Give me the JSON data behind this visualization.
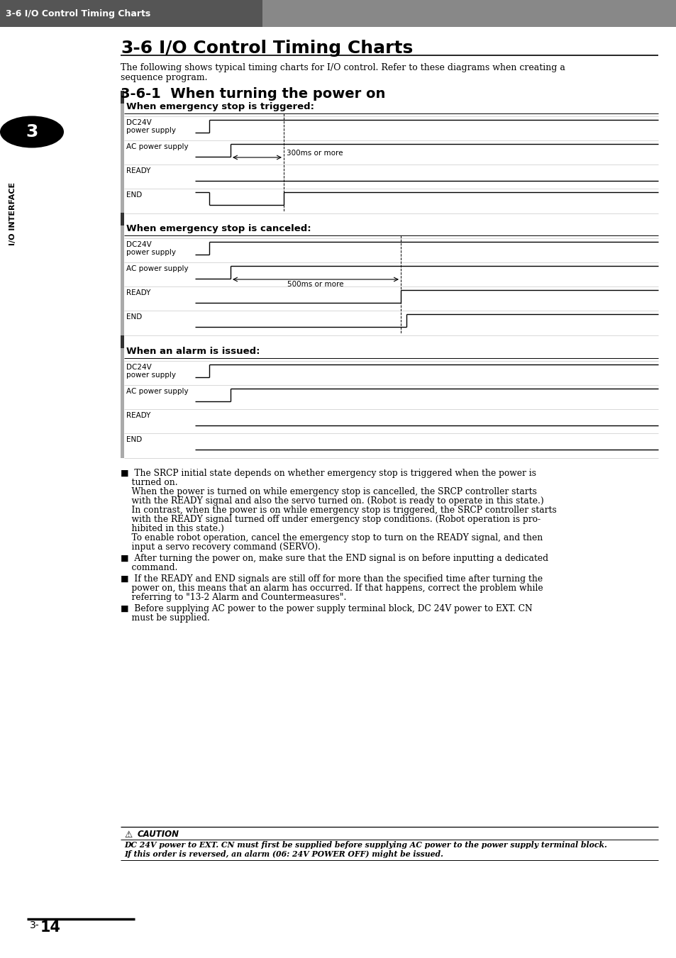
{
  "page_bg": "#ffffff",
  "header_bg": "#888888",
  "header_text": "3-6 I/O Control Timing Charts",
  "header_text_color": "#ffffff",
  "section_title": "3-6    I/O Control Timing Charts",
  "intro_text1": "The following shows typical timing charts for I/O control. Refer to these diagrams when creating a",
  "intro_text2": "sequence program.",
  "subsection_title": "3-6-1  When turning the power on",
  "diagram1_title": "When emergency stop is triggered:",
  "diagram2_title": "When emergency stop is canceled:",
  "diagram3_title": "When an alarm is issued:",
  "signal_labels": [
    "DC24V\npower supply",
    "AC power supply",
    "READY",
    "END"
  ],
  "ann1": "300ms or more",
  "ann2": "500ms or more",
  "bullet1_lines": [
    "■  The SRCP initial state depends on whether emergency stop is triggered when the power is",
    "    turned on.",
    "    When the power is turned on while emergency stop is cancelled, the SRCP controller starts",
    "    with the READY signal and also the servo turned on. (Robot is ready to operate in this state.)",
    "    In contrast, when the power is on while emergency stop is triggered, the SRCP controller starts",
    "    with the READY signal turned off under emergency stop conditions. (Robot operation is pro-",
    "    hibited in this state.)",
    "    To enable robot operation, cancel the emergency stop to turn on the READY signal, and then",
    "    input a servo recovery command (SERVO)."
  ],
  "bullet2_lines": [
    "■  After turning the power on, make sure that the END signal is on before inputting a dedicated",
    "    command."
  ],
  "bullet3_lines": [
    "■  If the READY and END signals are still off for more than the specified time after turning the",
    "    power on, this means that an alarm has occurred. If that happens, correct the problem while",
    "    referring to \"13-2 Alarm and Countermeasures\"."
  ],
  "bullet4_lines": [
    "■  Before supplying AC power to the power supply terminal block, DC 24V power to EXT. CN",
    "    must be supplied."
  ],
  "caution_title": "CAUTION",
  "caution_line1": "DC 24V power to EXT. CN must first be supplied before supplying AC power to the power supply terminal block.",
  "caution_line2": "If this order is reversed, an alarm (06: 24V POWER OFF) might be issued.",
  "page_number": "3-",
  "page_number2": "14"
}
